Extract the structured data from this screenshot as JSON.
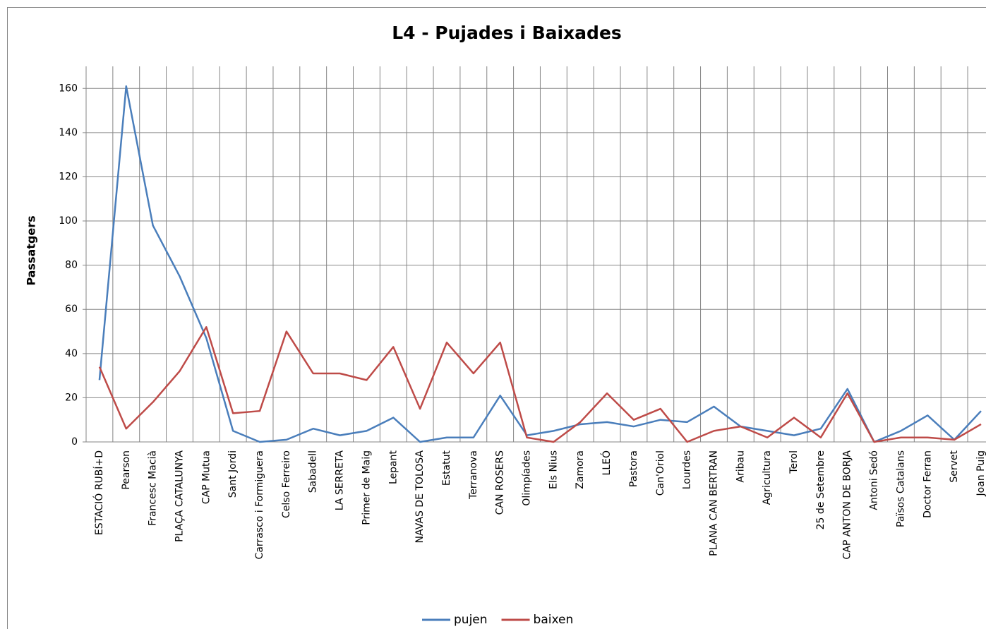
{
  "chart_data": {
    "type": "line",
    "title": "L4 - Pujades i Baixades",
    "y_label": "Passatgers",
    "categories": [
      "ESTACIÓ RUBÍ+D",
      "Pearson",
      "Francesc Macià",
      "PLAÇA CATALUNYA",
      "CAP Mutua",
      "Sant Jordi",
      "Carrasco i Formiguera",
      "Celso Ferreiro",
      "Sabadell",
      "LA SERRETA",
      "Primer de Maig",
      "Lepant",
      "NAVAS DE TOLOSA",
      "Estatut",
      "Terranova",
      "CAN ROSERS",
      "Olimpíades",
      "Els Nius",
      "Zamora",
      "LLEÓ",
      "Pastora",
      "Can'Oriol",
      "Lourdes",
      "PLANA CAN BERTRAN",
      "Aribau",
      "Agricultura",
      "Terol",
      "25 de Setembre",
      "CAP ANTON DE BORJA",
      "Antoni Sedó",
      "Països Catalans",
      "Doctor Ferran",
      "Servet",
      "Joan Puig"
    ],
    "series": [
      {
        "name": "pujen",
        "color": "#4a7ebb",
        "values": [
          28,
          161,
          98,
          75,
          47,
          5,
          0,
          1,
          6,
          3,
          5,
          11,
          0,
          2,
          2,
          21,
          3,
          5,
          8,
          9,
          7,
          10,
          9,
          16,
          7,
          5,
          3,
          6,
          24,
          0,
          5,
          12,
          1,
          14
        ]
      },
      {
        "name": "baixen",
        "color": "#be4b48",
        "values": [
          34,
          6,
          18,
          32,
          52,
          13,
          14,
          50,
          31,
          31,
          28,
          43,
          15,
          45,
          31,
          45,
          2,
          0,
          9,
          22,
          10,
          15,
          0,
          5,
          7,
          2,
          11,
          2,
          22,
          0,
          2,
          2,
          1,
          8
        ]
      }
    ],
    "ylim": [
      0,
      170
    ],
    "yticks": [
      0,
      20,
      40,
      60,
      80,
      100,
      120,
      140,
      160
    ],
    "grid": true,
    "legend": "bottom"
  }
}
